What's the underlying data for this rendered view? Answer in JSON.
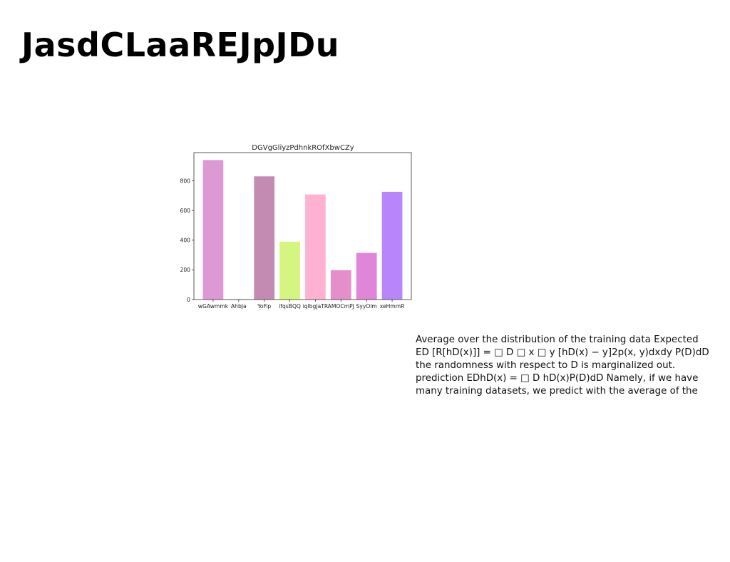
{
  "page": {
    "title": "JasdCLaaREJpJDu",
    "paragraph_lines": [
      "Average over the distribution of the training data Expected",
      "ED [R[hD(x)]] = □ D □ x □ y [hD(x) − y]2p(x, y)dxdy P(D)dD",
      "the randomness with respect to D is marginalized out.",
      "prediction EDhD(x) = □ D hD(x)P(D)dD Namely, if we have",
      "many training datasets, we predict with the average of the"
    ]
  },
  "chart_data": {
    "type": "bar",
    "title": "DGVgGliyzPdhnkROfXbwCZy",
    "xlabel": "",
    "ylabel": "",
    "categories": [
      "wGAwmmk",
      "AhbJa",
      "YoFip",
      "ifqsBQQ",
      "iqlbgJaTR",
      "AMOCmPJ",
      "SyyOlm",
      "xeHmmR"
    ],
    "values": [
      940,
      3,
      830,
      390,
      708,
      198,
      314,
      726
    ],
    "colors": [
      "#dd99d4",
      "#c8c8c8",
      "#c48bb2",
      "#d4f580",
      "#ffb1d1",
      "#e48fcc",
      "#e085d8",
      "#b885fa"
    ],
    "ylim": [
      0,
      990
    ],
    "yticks": [
      0,
      200,
      400,
      600,
      800
    ],
    "grid": false,
    "legend": "none"
  }
}
